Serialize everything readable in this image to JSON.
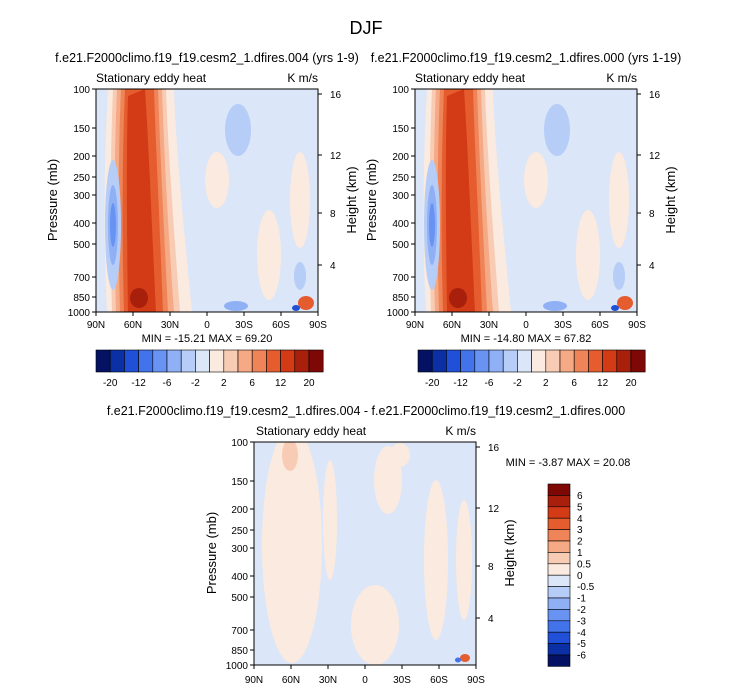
{
  "figure": {
    "title": "DJF"
  },
  "colors": {
    "main_scale": [
      "#051163",
      "#0b2fa4",
      "#2150d8",
      "#4273ea",
      "#6893f3",
      "#8fb0f5",
      "#b6cdf7",
      "#dbe6f8",
      "#fbeadf",
      "#f8ccb4",
      "#f5a984",
      "#ef8458",
      "#e55d2f",
      "#d33a16",
      "#a8200b",
      "#7e0806"
    ],
    "diff_scale": [
      "#051163",
      "#0b2fa4",
      "#2150d8",
      "#4273ea",
      "#6893f3",
      "#8fb0f5",
      "#b6cdf7",
      "#dbe6f8",
      "#fbeadf",
      "#f8ccb4",
      "#f5a984",
      "#ef8458",
      "#e55d2f",
      "#d33a16",
      "#a8200b",
      "#7e0806"
    ]
  },
  "chart_data": [
    {
      "type": "heatmap",
      "id": "panel1",
      "title": "f.e21.F2000climo.f19_f19.cesm2_1.dfires.004 (yrs 1-9)",
      "left_label": "Stationary eddy heat",
      "right_label": "K m/s",
      "xlabel": "",
      "ylabel": "Pressure (mb)",
      "ylabel_right": "Height (km)",
      "x_ticks": [
        "90N",
        "60N",
        "30N",
        "0",
        "30S",
        "60S",
        "90S"
      ],
      "y_ticks": [
        "100",
        "150",
        "200",
        "250",
        "300",
        "400",
        "500",
        "700",
        "850",
        "1000"
      ],
      "y_ticks_right": [
        "16",
        "12",
        "8",
        "4"
      ],
      "stats": "MIN = -15.21  MAX = 69.20",
      "colorbar_labels": [
        "-20",
        "-12",
        "-6",
        "-2",
        "2",
        "6",
        "12",
        "20"
      ],
      "colorbar_orientation": "horizontal"
    },
    {
      "type": "heatmap",
      "id": "panel2",
      "title": "f.e21.F2000climo.f19_f19.cesm2_1.dfires.000 (yrs 1-19)",
      "left_label": "Stationary eddy heat",
      "right_label": "K m/s",
      "xlabel": "",
      "ylabel": "Pressure (mb)",
      "ylabel_right": "Height (km)",
      "x_ticks": [
        "90N",
        "60N",
        "30N",
        "0",
        "30S",
        "60S",
        "90S"
      ],
      "y_ticks": [
        "100",
        "150",
        "200",
        "250",
        "300",
        "400",
        "500",
        "700",
        "850",
        "1000"
      ],
      "y_ticks_right": [
        "16",
        "12",
        "8",
        "4"
      ],
      "stats": "MIN = -14.80  MAX = 67.82",
      "colorbar_labels": [
        "-20",
        "-12",
        "-6",
        "-2",
        "2",
        "6",
        "12",
        "20"
      ],
      "colorbar_orientation": "horizontal"
    },
    {
      "type": "heatmap",
      "id": "panel3",
      "title": "f.e21.F2000climo.f19_f19.cesm2_1.dfires.004 - f.e21.F2000climo.f19_f19.cesm2_1.dfires.000",
      "left_label": "Stationary eddy heat",
      "right_label": "K m/s",
      "xlabel": "",
      "ylabel": "Pressure (mb)",
      "ylabel_right": "Height (km)",
      "x_ticks": [
        "90N",
        "60N",
        "30N",
        "0",
        "30S",
        "60S",
        "90S"
      ],
      "y_ticks": [
        "100",
        "150",
        "200",
        "250",
        "300",
        "400",
        "500",
        "700",
        "850",
        "1000"
      ],
      "y_ticks_right": [
        "16",
        "12",
        "8",
        "4"
      ],
      "stats": "MIN = -3.87  MAX = 20.08",
      "colorbar_labels": [
        "6",
        "5",
        "4",
        "3",
        "2",
        "1",
        "0.5",
        "0",
        "-0.5",
        "-1",
        "-2",
        "-3",
        "-4",
        "-5",
        "-6"
      ],
      "colorbar_orientation": "vertical"
    }
  ]
}
